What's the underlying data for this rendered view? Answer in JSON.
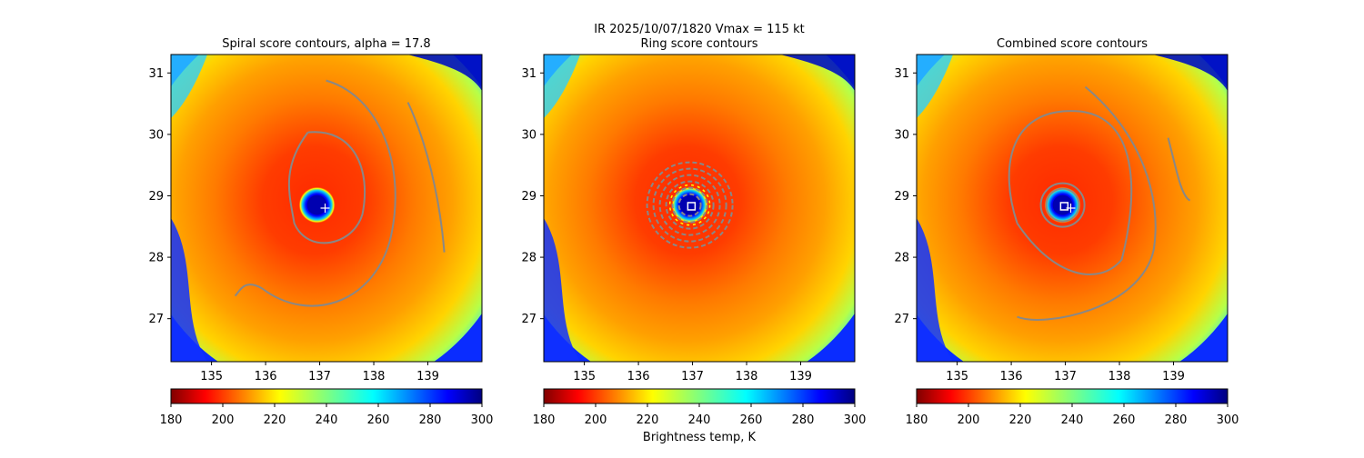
{
  "figure": {
    "suptitle": "IR  2025/10/07/1820    Vmax = 115 kt",
    "colorbar_label": "Brightness temp, K"
  },
  "chart_data": [
    {
      "type": "heatmap",
      "title": "Spiral score contours, alpha = 17.8",
      "x_ticks": [
        "135",
        "136",
        "137",
        "138",
        "139"
      ],
      "y_ticks": [
        "31",
        "30",
        "29",
        "28",
        "27"
      ],
      "xlim": [
        134.25,
        140.0
      ],
      "ylim": [
        26.3,
        31.3
      ],
      "colorbar": {
        "ticks": [
          "180",
          "200",
          "220",
          "240",
          "260",
          "280",
          "300"
        ],
        "range": [
          180,
          300
        ],
        "colormap": "jet_r"
      },
      "markers": [
        {
          "kind": "plus",
          "lon": 137.1,
          "lat": 28.8,
          "color": "#ffffff"
        }
      ],
      "eye_center": {
        "lon": 136.95,
        "lat": 28.85
      }
    },
    {
      "type": "heatmap",
      "title": "Ring score contours",
      "x_ticks": [
        "135",
        "136",
        "137",
        "138",
        "139"
      ],
      "y_ticks": [
        "31",
        "30",
        "29",
        "28",
        "27"
      ],
      "xlim": [
        134.25,
        140.0
      ],
      "ylim": [
        26.3,
        31.3
      ],
      "colorbar": {
        "ticks": [
          "180",
          "200",
          "220",
          "240",
          "260",
          "280",
          "300"
        ],
        "range": [
          180,
          300
        ],
        "colormap": "jet_r"
      },
      "markers": [
        {
          "kind": "square",
          "lon": 136.98,
          "lat": 28.83,
          "color": "#ffffff"
        }
      ],
      "eye_center": {
        "lon": 136.95,
        "lat": 28.85
      }
    },
    {
      "type": "heatmap",
      "title": "Combined score contours",
      "x_ticks": [
        "135",
        "136",
        "137",
        "138",
        "139"
      ],
      "y_ticks": [
        "31",
        "30",
        "29",
        "28",
        "27"
      ],
      "xlim": [
        134.25,
        140.0
      ],
      "ylim": [
        26.3,
        31.3
      ],
      "colorbar": {
        "ticks": [
          "180",
          "200",
          "220",
          "240",
          "260",
          "280",
          "300"
        ],
        "range": [
          180,
          300
        ],
        "colormap": "jet_r"
      },
      "markers": [
        {
          "kind": "square",
          "lon": 136.98,
          "lat": 28.83,
          "color": "#ffffff"
        },
        {
          "kind": "plus",
          "lon": 137.1,
          "lat": 28.8,
          "color": "#ffffff"
        }
      ],
      "eye_center": {
        "lon": 136.95,
        "lat": 28.85
      }
    }
  ],
  "colors": {
    "contour": "#888888",
    "ring_highlight": "#ffff00"
  }
}
